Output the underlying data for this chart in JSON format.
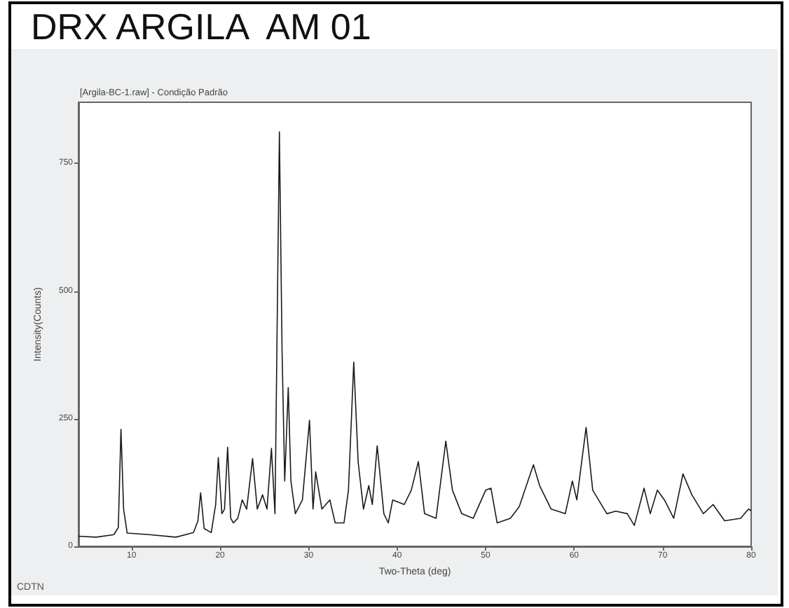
{
  "chart_data": {
    "type": "line",
    "title": "DRX ARGILA  AM 01",
    "subtitle": "[Argila-BC-1.raw] - Condição Padrão",
    "xlabel": "Two-Theta (deg)",
    "ylabel": "Intensity(Counts)",
    "annotations": [
      "CDTN"
    ],
    "series": [
      {
        "color": "#1a1a1a",
        "x": [
          4,
          6,
          8,
          8.5,
          8.8,
          9.1,
          9.5,
          12,
          15,
          17,
          17.5,
          17.8,
          18.2,
          19,
          19.5,
          19.8,
          20.2,
          20.5,
          20.85,
          21.2,
          21.5,
          22,
          22.5,
          23,
          23.67,
          24.2,
          24.8,
          25.3,
          25.8,
          26.2,
          26.7,
          27.0,
          27.3,
          27.7,
          28.0,
          28.5,
          29.3,
          30.1,
          30.5,
          30.8,
          31.5,
          32.4,
          33,
          34,
          34.5,
          35.1,
          35.6,
          36.2,
          36.8,
          37.2,
          37.75,
          38.5,
          39.0,
          39.5,
          40.8,
          41.6,
          42.4,
          43.1,
          44.4,
          45.5,
          46.25,
          47.3,
          48.6,
          50.0,
          50.6,
          51.3,
          52.8,
          53.8,
          55.4,
          56.1,
          57.4,
          59.0,
          59.8,
          60.3,
          61.35,
          62.1,
          63.7,
          64.7,
          66.0,
          66.8,
          67.9,
          68.6,
          69.4,
          70.2,
          71.25,
          72.3,
          73.3,
          74.6,
          75.7,
          77.0,
          78.8,
          79.7,
          80
        ],
        "values": [
          20,
          18,
          23,
          37,
          229,
          73,
          26,
          23,
          18,
          27,
          50,
          105,
          35,
          27,
          82,
          174,
          64,
          73,
          194,
          55,
          46,
          55,
          91,
          73,
          172,
          73,
          101,
          73,
          192,
          64,
          812,
          384,
          128,
          311,
          128,
          64,
          91,
          247,
          73,
          146,
          73,
          91,
          46,
          46,
          110,
          361,
          165,
          73,
          119,
          82,
          197,
          64,
          46,
          91,
          82,
          110,
          166,
          64,
          55,
          206,
          110,
          64,
          55,
          110,
          114,
          46,
          55,
          78,
          160,
          119,
          73,
          64,
          128,
          91,
          233,
          110,
          64,
          69,
          64,
          41,
          114,
          64,
          110,
          91,
          55,
          142,
          101,
          64,
          82,
          50,
          55,
          73,
          70
        ]
      }
    ],
    "xlim": [
      4,
      80
    ],
    "xticks": [
      10,
      20,
      30,
      40,
      50,
      60,
      70,
      80
    ],
    "ylim": [
      0,
      870
    ],
    "yticks": [
      0,
      250,
      500,
      750
    ],
    "grid": false,
    "marker": "none",
    "line_style": "solid"
  }
}
